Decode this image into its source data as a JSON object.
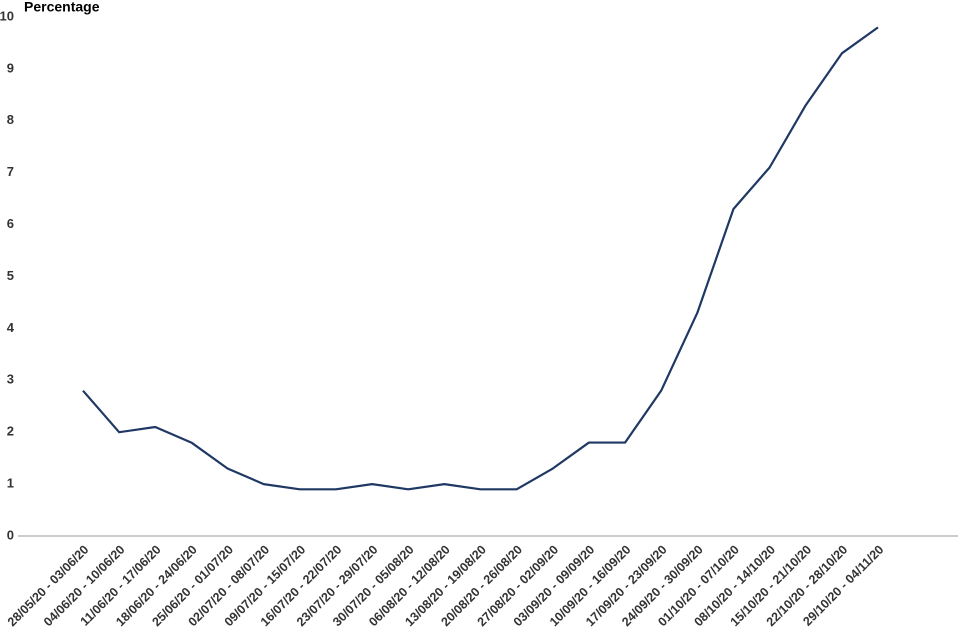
{
  "chart_data": {
    "type": "line",
    "y_axis_label": "Percentage",
    "categories": [
      "28/05/20 - 03/06/20",
      "04/06/20 - 10/06/20",
      "11/06/20 - 17/06/20",
      "18/06/20 - 24/06/20",
      "25/06/20 - 01/07/20",
      "02/07/20 - 08/07/20",
      "09/07/20 - 15/07/20",
      "16/07/20 - 22/07/20",
      "23/07/20 - 29/07/20",
      "30/07/20 - 05/08/20",
      "06/08/20 - 12/08/20",
      "13/08/20 - 19/08/20",
      "20/08/20 - 26/08/20",
      "27/08/20 - 02/09/20",
      "03/09/20 - 09/09/20",
      "10/09/20 - 16/09/20",
      "17/09/20 - 23/09/20",
      "24/09/20 - 30/09/20",
      "01/10/20 - 07/10/20",
      "08/10/20 - 14/10/20",
      "15/10/20 - 21/10/20",
      "22/10/20 - 28/10/20",
      "29/10/20 - 04/11/20"
    ],
    "values": [
      2.8,
      2.0,
      2.1,
      1.8,
      1.3,
      1.0,
      0.9,
      0.9,
      1.0,
      0.9,
      1.0,
      0.9,
      0.9,
      1.3,
      1.8,
      1.8,
      2.8,
      4.3,
      6.3,
      7.1,
      8.3,
      9.3,
      9.8
    ],
    "color": "#1f3864",
    "ylim": [
      0,
      10
    ],
    "yticks": [
      0,
      1,
      2,
      3,
      4,
      5,
      6,
      7,
      8,
      9,
      10
    ],
    "grid": false
  }
}
